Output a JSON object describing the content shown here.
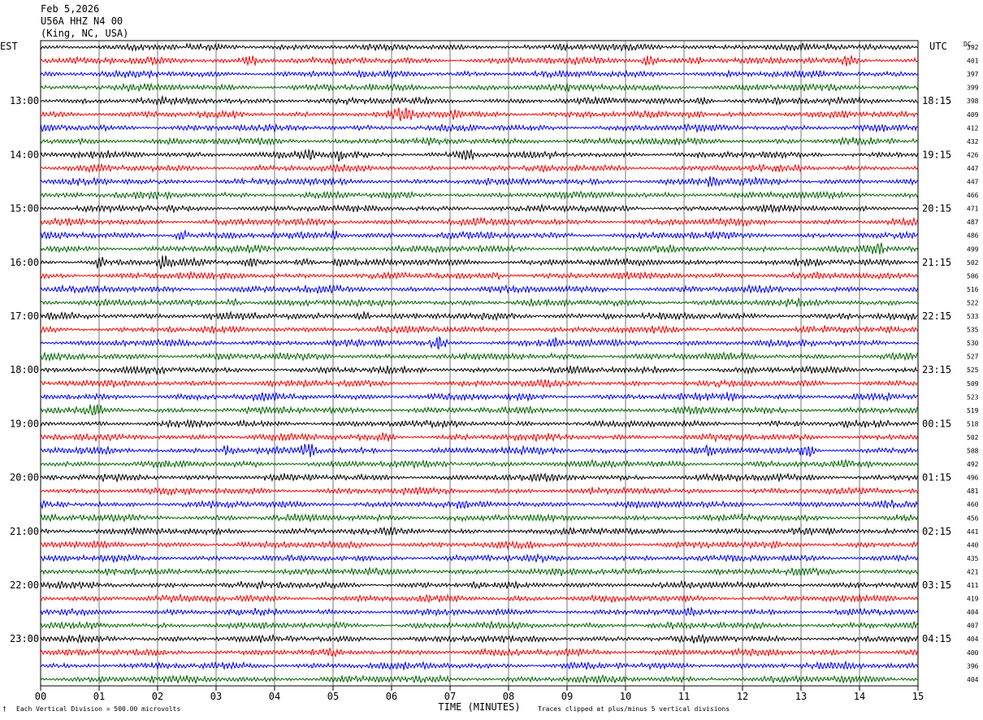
{
  "header": {
    "date": "Feb 5,2026",
    "station": "U56A HHZ N4 00",
    "location": "(King, NC, USA)"
  },
  "left_tz": "EST",
  "right_tz": "UTC",
  "dc_label": "DC",
  "footer": {
    "division": "Each Vertical Division =  500.00 microvolts",
    "clipping": "Traces clipped at plus/minus 5 vertical divisions"
  },
  "chart_data": {
    "type": "line",
    "xlabel": "TIME (MINUTES)",
    "xlim": [
      0,
      15
    ],
    "x_ticks": [
      "00",
      "01",
      "02",
      "03",
      "04",
      "05",
      "06",
      "07",
      "08",
      "09",
      "10",
      "11",
      "12",
      "13",
      "14",
      "15"
    ],
    "trace_colors": [
      "#000000",
      "#ff0000",
      "#0000ff",
      "#006600"
    ],
    "left_hour_labels": [
      "13:00",
      "14:00",
      "15:00",
      "16:00",
      "17:00",
      "18:00",
      "19:00",
      "20:00",
      "21:00",
      "22:00",
      "23:00"
    ],
    "right_hour_labels": [
      "18:15",
      "19:15",
      "20:15",
      "21:15",
      "22:15",
      "23:15",
      "00:15",
      "01:15",
      "02:15",
      "03:15",
      "04:15"
    ],
    "dc_offsets": [
      "392",
      "401",
      "397",
      "399",
      "398",
      "409",
      "412",
      "432",
      "426",
      "447",
      "447",
      "466",
      "471",
      "487",
      "486",
      "499",
      "502",
      "506",
      "516",
      "522",
      "533",
      "535",
      "530",
      "527",
      "525",
      "509",
      "523",
      "519",
      "518",
      "502",
      "508",
      "492",
      "496",
      "481",
      "460",
      "456",
      "441",
      "440",
      "435",
      "421",
      "411",
      "419",
      "404",
      "407",
      "404",
      "400",
      "396",
      "404"
    ],
    "events": [
      {
        "trace": 1,
        "minute": 3.6,
        "amplitude": 2.2
      },
      {
        "trace": 1,
        "minute": 10.4,
        "amplitude": 1.6
      },
      {
        "trace": 1,
        "minute": 11.2,
        "amplitude": 1.3
      },
      {
        "trace": 1,
        "minute": 13.8,
        "amplitude": 1.5
      },
      {
        "trace": 4,
        "minute": 11.3,
        "amplitude": 1.4
      },
      {
        "trace": 5,
        "minute": 6.2,
        "amplitude": 2.6
      },
      {
        "trace": 5,
        "minute": 7.0,
        "amplitude": 1.6
      },
      {
        "trace": 5,
        "minute": 11.2,
        "amplitude": 1.3
      },
      {
        "trace": 8,
        "minute": 4.6,
        "amplitude": 1.5
      },
      {
        "trace": 8,
        "minute": 5.1,
        "amplitude": 2.0
      },
      {
        "trace": 8,
        "minute": 7.3,
        "amplitude": 2.4
      },
      {
        "trace": 10,
        "minute": 11.5,
        "amplitude": 1.3
      },
      {
        "trace": 14,
        "minute": 2.4,
        "amplitude": 1.7
      },
      {
        "trace": 14,
        "minute": 5.0,
        "amplitude": 1.6
      },
      {
        "trace": 15,
        "minute": 14.3,
        "amplitude": 2.2
      },
      {
        "trace": 16,
        "minute": 1.0,
        "amplitude": 1.5
      },
      {
        "trace": 16,
        "minute": 2.1,
        "amplitude": 2.0
      },
      {
        "trace": 16,
        "minute": 3.6,
        "amplitude": 1.6
      },
      {
        "trace": 16,
        "minute": 4.5,
        "amplitude": 1.5
      },
      {
        "trace": 16,
        "minute": 5.1,
        "amplitude": 1.6
      },
      {
        "trace": 17,
        "minute": 7.8,
        "amplitude": 1.3
      },
      {
        "trace": 19,
        "minute": 3.3,
        "amplitude": 1.6
      },
      {
        "trace": 20,
        "minute": 5.5,
        "amplitude": 1.6
      },
      {
        "trace": 20,
        "minute": 9.7,
        "amplitude": 1.2
      },
      {
        "trace": 22,
        "minute": 6.8,
        "amplitude": 2.0
      },
      {
        "trace": 22,
        "minute": 8.8,
        "amplitude": 1.3
      },
      {
        "trace": 26,
        "minute": 11.8,
        "amplitude": 1.3
      },
      {
        "trace": 27,
        "minute": 0.9,
        "amplitude": 1.7
      },
      {
        "trace": 29,
        "minute": 5.9,
        "amplitude": 1.3
      },
      {
        "trace": 30,
        "minute": 3.2,
        "amplitude": 1.4
      },
      {
        "trace": 30,
        "minute": 4.6,
        "amplitude": 3.0
      },
      {
        "trace": 30,
        "minute": 11.4,
        "amplitude": 1.3
      },
      {
        "trace": 30,
        "minute": 13.1,
        "amplitude": 2.6
      }
    ]
  }
}
